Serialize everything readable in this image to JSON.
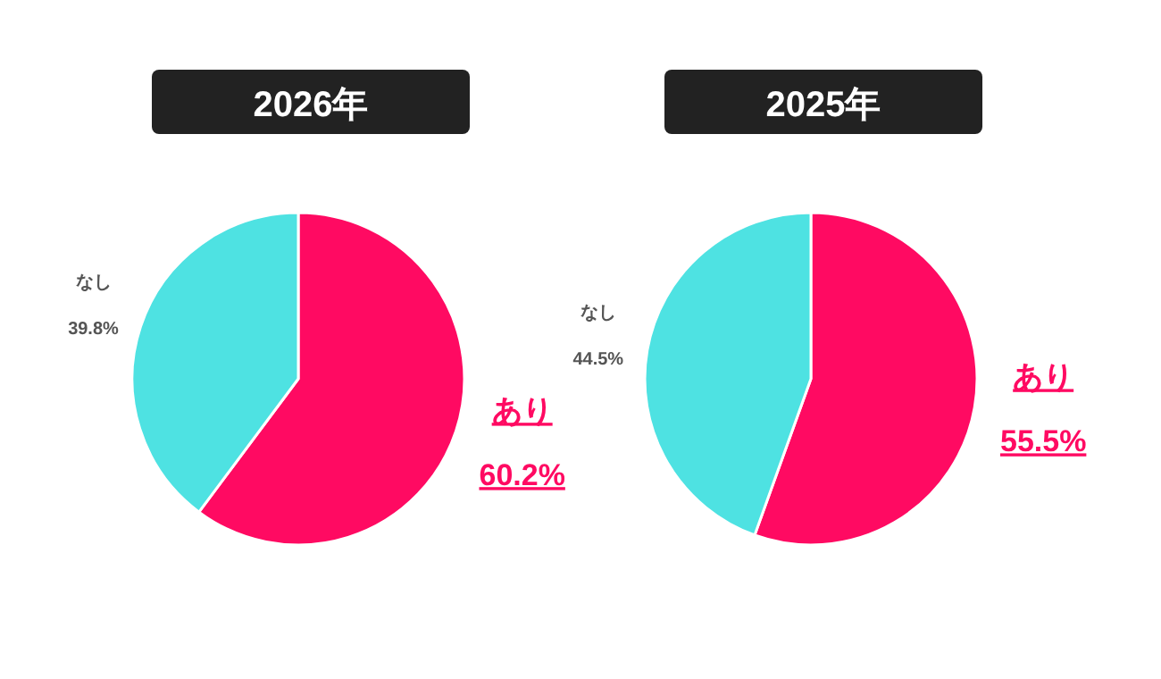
{
  "chart_data": [
    {
      "type": "pie",
      "title": "2026年",
      "categories": [
        "あり",
        "なし"
      ],
      "values": [
        60.2,
        39.8
      ],
      "colors": [
        "#ff0a62",
        "#4ee2e2"
      ],
      "value_labels": [
        "60.2%",
        "39.8%"
      ]
    },
    {
      "type": "pie",
      "title": "2025年",
      "categories": [
        "あり",
        "なし"
      ],
      "values": [
        55.5,
        44.5
      ],
      "colors": [
        "#ff0a62",
        "#4ee2e2"
      ],
      "value_labels": [
        "55.5%",
        "44.5%"
      ]
    }
  ]
}
